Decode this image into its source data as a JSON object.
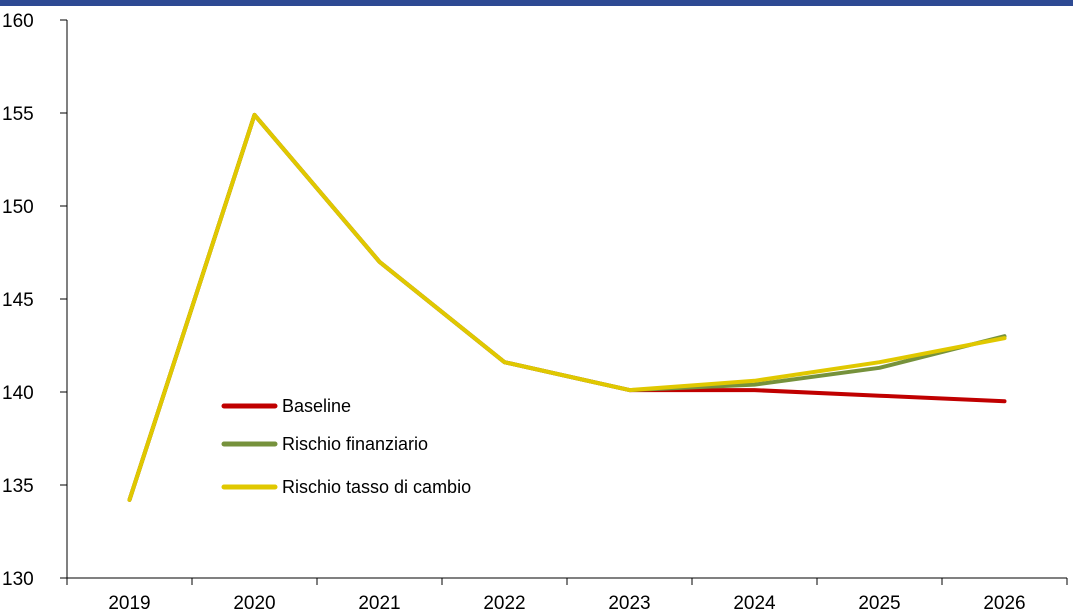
{
  "colors": {
    "top_bar": "#2e4a93",
    "axis": "#000000"
  },
  "chart_data": {
    "type": "line",
    "title": "",
    "xlabel": "",
    "ylabel": "",
    "x": [
      "2019",
      "2020",
      "2021",
      "2022",
      "2023",
      "2024",
      "2025",
      "2026"
    ],
    "ylim": [
      130,
      160
    ],
    "yticks": [
      130,
      135,
      140,
      145,
      150,
      155,
      160
    ],
    "grid": false,
    "legend_position": "center-left",
    "series": [
      {
        "name": "Baseline",
        "color": "#c00000",
        "values": [
          134.2,
          154.9,
          147.0,
          141.6,
          140.1,
          140.1,
          139.8,
          139.5
        ]
      },
      {
        "name": "Rischio finanziario",
        "color": "#76923c",
        "values": [
          134.2,
          154.9,
          147.0,
          141.6,
          140.1,
          140.4,
          141.3,
          143.0
        ]
      },
      {
        "name": "Rischio tasso di cambio",
        "color": "#e0c800",
        "values": [
          134.2,
          154.9,
          147.0,
          141.6,
          140.1,
          140.6,
          141.6,
          142.9
        ]
      }
    ]
  }
}
